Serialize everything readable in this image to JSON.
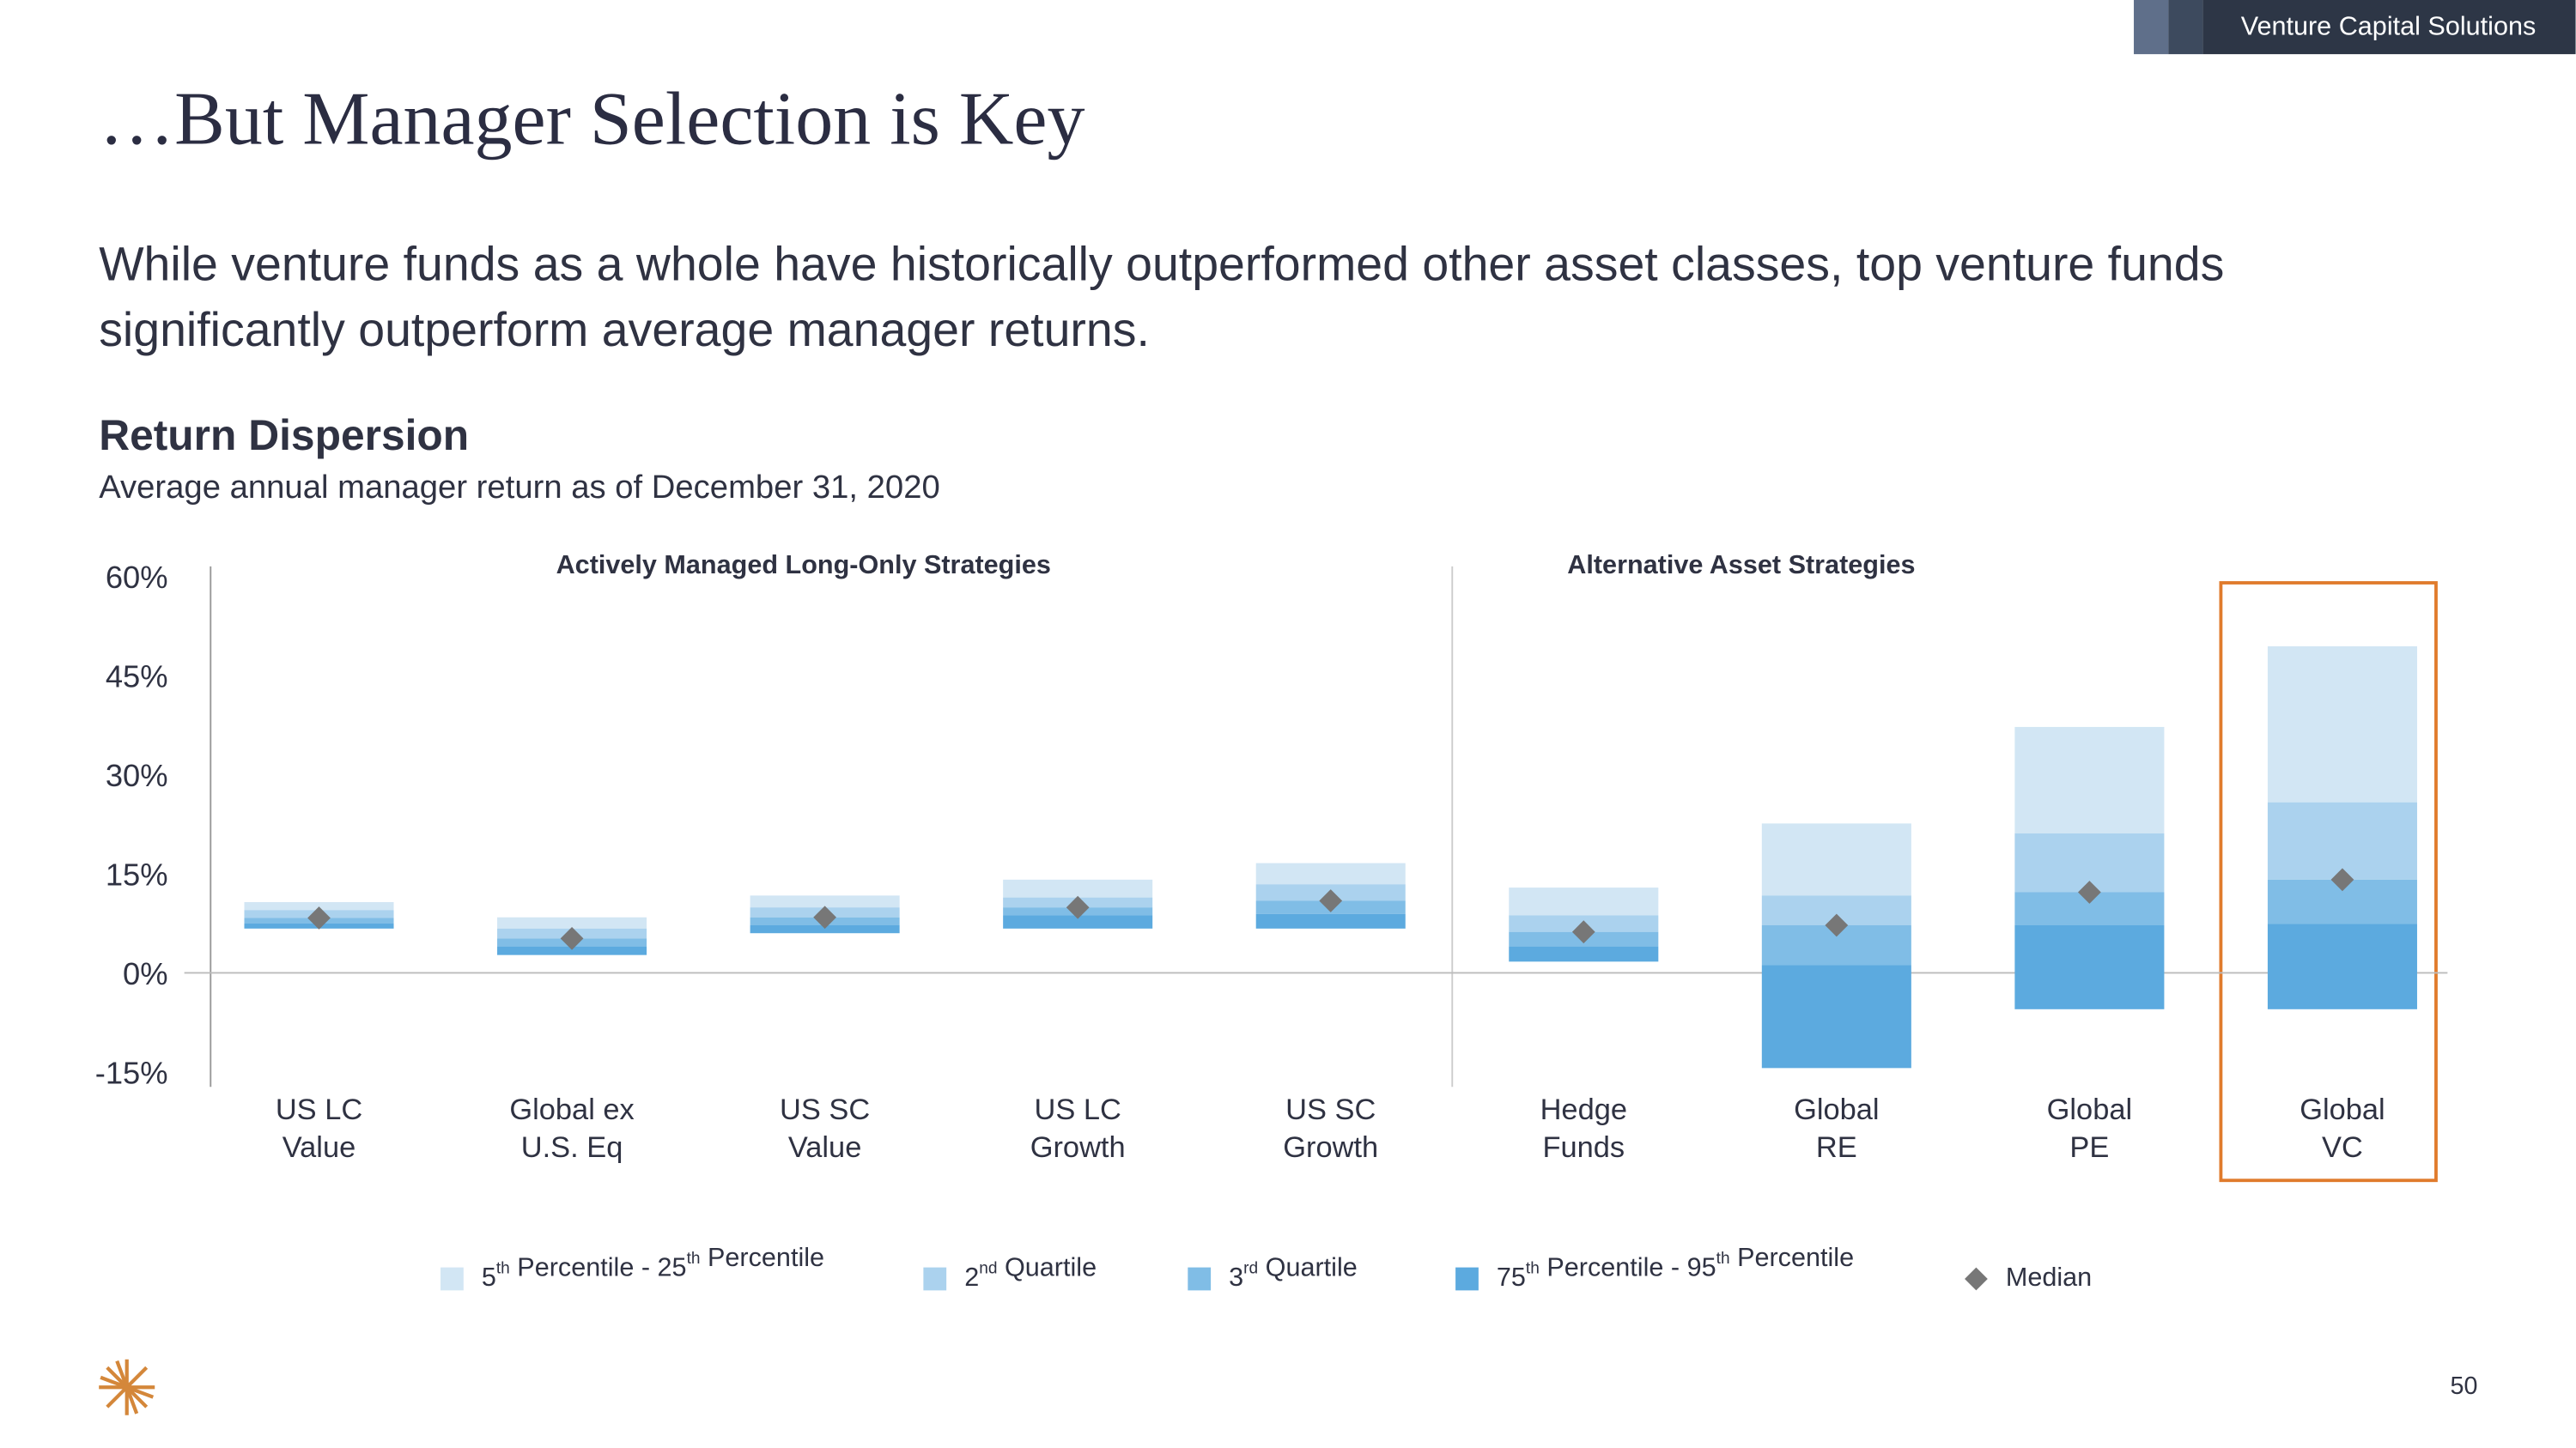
{
  "header": {
    "tag": "Venture Capital Solutions",
    "title": "…But Manager Selection is Key",
    "lead": [
      "While venture funds as a whole have historically outperformed other asset classes, top venture funds",
      "significantly outperform average manager returns."
    ]
  },
  "page_number": "50",
  "chart_data": {
    "type": "floating-bar",
    "title": "Return Dispersion",
    "subtitle": "Average annual manager return as of December 31, 2020",
    "groups": [
      "Actively Managed Long-Only Strategies",
      "Alternative Asset Strategies"
    ],
    "categories": [
      [
        "US LC",
        "Value"
      ],
      [
        "Global ex",
        "U.S. Eq"
      ],
      [
        "US SC",
        "Value"
      ],
      [
        "US LC",
        "Growth"
      ],
      [
        "US SC",
        "Growth"
      ],
      [
        "Hedge",
        "Funds"
      ],
      [
        "Global",
        "RE"
      ],
      [
        "Global",
        "PE"
      ],
      [
        "Global",
        "VC"
      ]
    ],
    "series": [
      {
        "name": "5th Percentile - 25th Percentile",
        "color": "#d2e6f4",
        "values": [
          [
            10.0,
            11.2
          ],
          [
            7.2,
            8.9
          ],
          [
            10.4,
            12.2
          ],
          [
            11.9,
            14.6
          ],
          [
            13.9,
            17.1
          ],
          [
            9.2,
            13.4
          ],
          [
            12.2,
            23.1
          ],
          [
            21.6,
            37.7
          ],
          [
            26.3,
            49.9
          ]
        ]
      },
      {
        "name": "2nd Quartile",
        "color": "#abd2ee",
        "values": [
          [
            8.8,
            10.0
          ],
          [
            5.7,
            7.2
          ],
          [
            8.9,
            10.4
          ],
          [
            10.4,
            11.9
          ],
          [
            11.4,
            13.9
          ],
          [
            6.7,
            9.2
          ],
          [
            7.7,
            12.2
          ],
          [
            12.7,
            21.6
          ],
          [
            14.6,
            26.3
          ]
        ]
      },
      {
        "name": "3rd Quartile",
        "color": "#80bde6",
        "values": [
          [
            8.0,
            8.8
          ],
          [
            4.5,
            5.7
          ],
          [
            7.7,
            8.9
          ],
          [
            9.2,
            10.4
          ],
          [
            9.4,
            11.4
          ],
          [
            4.5,
            6.7
          ],
          [
            1.7,
            7.7
          ],
          [
            7.7,
            12.7
          ],
          [
            7.9,
            14.6
          ]
        ]
      },
      {
        "name": "75th Percentile - 95th Percentile",
        "color": "#5caadf",
        "values": [
          [
            7.2,
            8.0
          ],
          [
            3.2,
            4.5
          ],
          [
            6.5,
            7.7
          ],
          [
            7.2,
            9.2
          ],
          [
            7.2,
            9.4
          ],
          [
            2.2,
            4.5
          ],
          [
            -13.9,
            1.7
          ],
          [
            -5.0,
            7.7
          ],
          [
            -5.0,
            7.9
          ]
        ]
      },
      {
        "name": "Median",
        "color": "#777777",
        "marker": "diamond",
        "values": [
          8.8,
          5.7,
          8.9,
          10.4,
          11.4,
          6.7,
          7.7,
          12.7,
          14.6
        ]
      }
    ],
    "ylim": [
      -15,
      60
    ],
    "yticks": [
      {
        "value": 60,
        "label": "60%"
      },
      {
        "value": 45,
        "label": "45%"
      },
      {
        "value": 30,
        "label": "30%"
      },
      {
        "value": 15,
        "label": "15%"
      },
      {
        "value": 0,
        "label": "0%"
      },
      {
        "value": -15,
        "label": "-15%"
      }
    ]
  }
}
